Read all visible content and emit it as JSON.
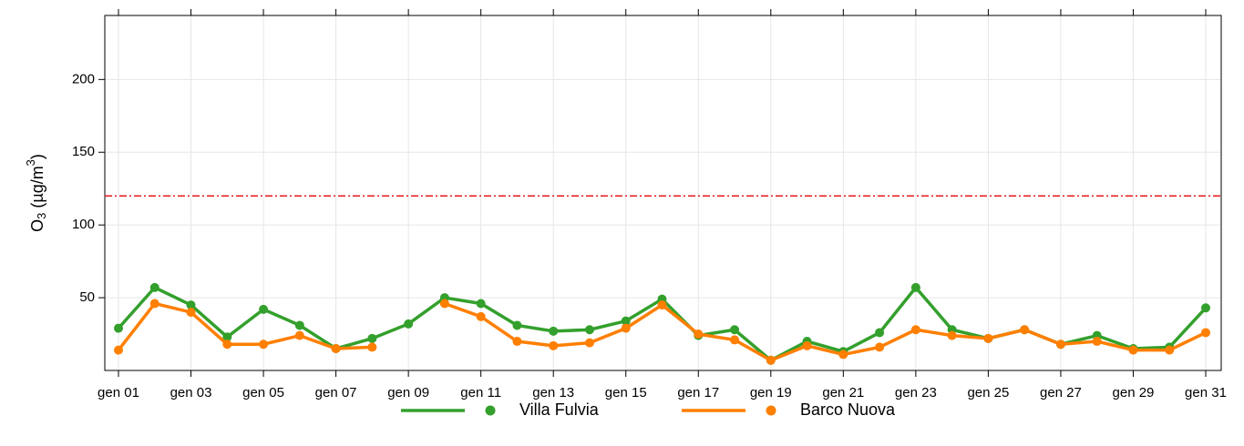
{
  "chart_data": {
    "type": "line",
    "ylabel": {
      "main": "O",
      "sub": "3",
      "mid": " (µg/m",
      "sup": "3",
      "end": ")"
    },
    "categories": [
      "gen 01",
      null,
      "gen 03",
      null,
      "gen 05",
      null,
      "gen 07",
      null,
      "gen 09",
      null,
      "gen 11",
      null,
      "gen 13",
      null,
      "gen 15",
      null,
      "gen 17",
      null,
      "gen 19",
      null,
      "gen 21",
      null,
      "gen 23",
      null,
      "gen 25",
      null,
      "gen 27",
      null,
      "gen 29",
      null,
      "gen 31"
    ],
    "series": [
      {
        "name": "Villa Fulvia",
        "color": "#33a02c",
        "values": [
          29,
          57,
          45,
          23,
          42,
          31,
          15,
          22,
          32,
          50,
          46,
          31,
          27,
          28,
          34,
          49,
          24,
          28,
          7,
          20,
          13,
          26,
          57,
          28,
          22,
          28,
          18,
          24,
          15,
          16,
          43
        ]
      },
      {
        "name": "Barco Nuova",
        "color": "#ff7f00",
        "values": [
          14,
          46,
          40,
          18,
          18,
          24,
          15,
          16,
          null,
          46,
          37,
          20,
          17,
          19,
          29,
          45,
          25,
          21,
          7,
          17,
          11,
          16,
          28,
          24,
          22,
          28,
          18,
          20,
          14,
          14,
          26
        ]
      }
    ],
    "hline": {
      "value": 120,
      "color": "#e41a1c"
    },
    "ylim": [
      0,
      244
    ],
    "yticks": [
      50,
      100,
      150,
      200
    ],
    "grid": true
  }
}
